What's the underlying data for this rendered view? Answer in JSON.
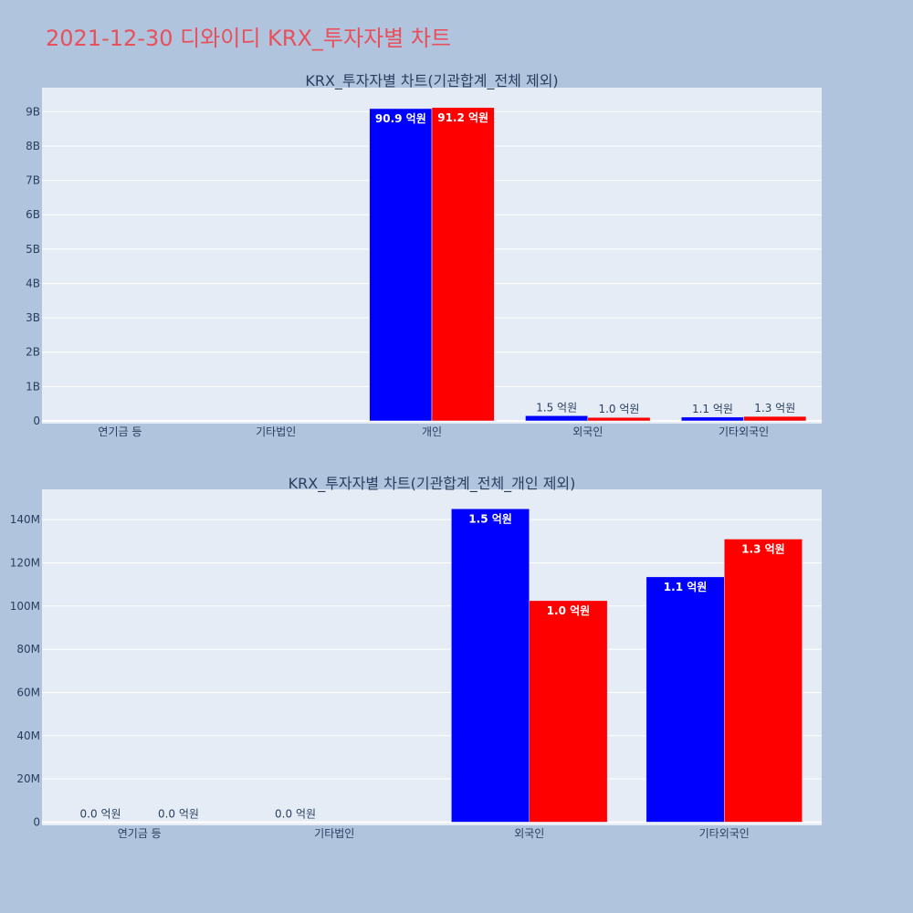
{
  "page": {
    "title": "2021-12-30 디와이디 KRX_투자자별 차트"
  },
  "colors": {
    "background": "#b0c4de",
    "plot_bg": "#e5ecf6",
    "title": "#e8505b",
    "buy": "#0000ff",
    "sell": "#ff0000",
    "text": "#2a3f5f"
  },
  "chart_data": [
    {
      "type": "bar",
      "title": "KRX_투자자별 차트(기관합계_전체 제외)",
      "categories": [
        "연기금 등",
        "기타법인",
        "개인",
        "외국인",
        "기타외국인"
      ],
      "ylim": [
        -0.08,
        9.7
      ],
      "yticks": [
        0,
        1,
        2,
        3,
        4,
        5,
        6,
        7,
        8,
        9
      ],
      "ytick_labels": [
        "0",
        "1B",
        "2B",
        "3B",
        "4B",
        "5B",
        "6B",
        "7B",
        "8B",
        "9B"
      ],
      "grid": true,
      "series": [
        {
          "color": "#0000ff",
          "values": [
            0,
            0,
            9.09,
            0.15,
            0.11
          ],
          "labels": [
            "",
            "",
            "90.9 억원",
            "1.5 억원",
            "1.1 억원"
          ]
        },
        {
          "color": "#ff0000",
          "values": [
            0,
            0,
            9.12,
            0.1,
            0.13
          ],
          "labels": [
            "",
            "",
            "91.2 억원",
            "1.0 억원",
            "1.3 억원"
          ]
        }
      ]
    },
    {
      "type": "bar",
      "title": "KRX_투자자별 차트(기관합계_전체_개인 제외)",
      "categories": [
        "연기금 등",
        "기타법인",
        "외국인",
        "기타외국인"
      ],
      "ylim": [
        -1.5,
        154
      ],
      "yticks": [
        0,
        20,
        40,
        60,
        80,
        100,
        120,
        140
      ],
      "ytick_labels": [
        "0",
        "20M",
        "40M",
        "60M",
        "80M",
        "100M",
        "120M",
        "140M"
      ],
      "grid": true,
      "series": [
        {
          "color": "#0000ff",
          "values": [
            0,
            0,
            145,
            113.5
          ],
          "labels": [
            "0.0 억원",
            "0.0 억원",
            "1.5 억원",
            "1.1 억원"
          ]
        },
        {
          "color": "#ff0000",
          "values": [
            0,
            null,
            102.5,
            131
          ],
          "labels": [
            "0.0 억원",
            "",
            "1.0 억원",
            "1.3 억원"
          ]
        }
      ]
    }
  ]
}
